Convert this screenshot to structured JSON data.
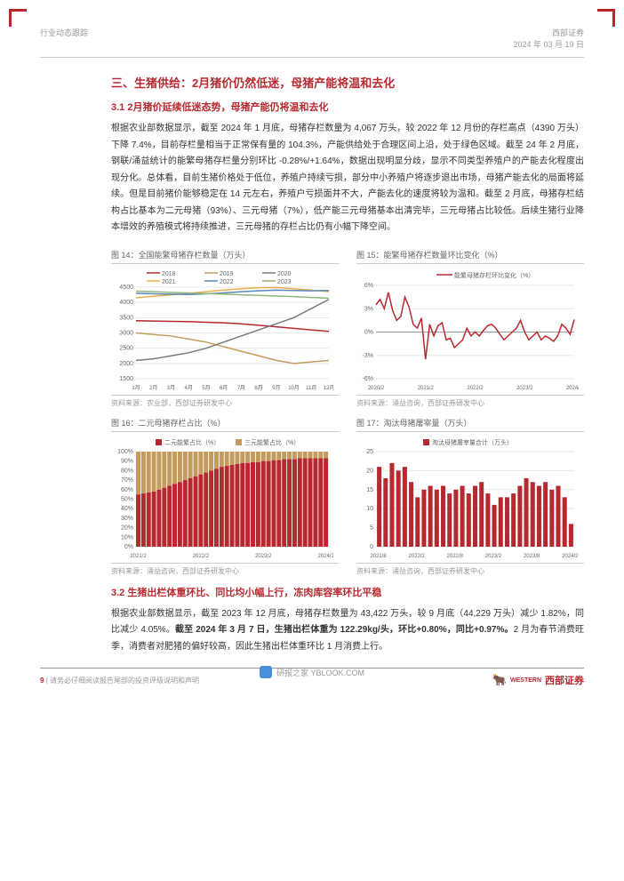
{
  "header": {
    "left": "行业动态跟踪",
    "right_top": "西部证券",
    "right_bottom": "2024 年 03 月 19 日"
  },
  "section": {
    "h1": "三、生猪供给：2月猪价仍然低迷，母猪产能将温和去化",
    "h2_1": "3.1 2月猪价延续低迷态势，母猪产能仍将温和去化",
    "para1": "根据农业部数据显示，截至 2024 年 1 月底，母猪存栏数量为 4,067 万头，较 2022 年 12 月份的存栏高点（4390 万头）下降 7.4%，目前存栏量相当于正常保有量的 104.3%，产能供给处于合理区间上沿，处于绿色区域。截至 24 年 2 月底，钢联/涌益统计的能繁母猪存栏量分别环比 -0.28%/+1.64%，数据出现明显分歧，显示不同类型养殖户的产能去化程度出现分化。总体看，目前生猪价格处于低位，养殖户持续亏损，部分中小养殖户将逐步退出市场，母猪产能去化的局面将延续。但是目前猪价能够稳定在 14 元左右，养殖户亏损面并不大，产能去化的速度将较为温和。截至 2 月底，母猪存栏结构占比基本为二元母猪（93%）、三元母猪（7%），低产能三元母猪基本出清完毕，三元母猪占比较低。后续生猪行业降本增效的养殖模式将持续推进，三元母猪的存栏占比仍有小幅下降空间。",
    "h2_2": "3.2 生猪出栏体重环比、同比均小幅上行，冻肉库容率环比平稳",
    "para2": "根据农业部数据显示，截至 2023 年 12 月底，母猪存栏数量为 43,422 万头，较 9 月底（44,229 万头）减少 1.82%，同比减少 4.05%。截至 2024 年 3 月 7 日，生猪出栏体重为 122.29kg/头，环比+0.80%，同比+0.97%。2 月为春节消费旺季，消费者对肥猪的偏好较高，因此生猪出栏体重环比 1 月消费上行。"
  },
  "chart14": {
    "title": "图 14：全国能繁母猪存栏数量（万头）",
    "source": "资料来源：农业部，西部证券研发中心",
    "type": "line",
    "legend": [
      {
        "label": "2018",
        "color": "#b8292f"
      },
      {
        "label": "2019",
        "color": "#c49b5f"
      },
      {
        "label": "2020",
        "color": "#7a7a7a"
      },
      {
        "label": "2021",
        "color": "#e8b04b"
      },
      {
        "label": "2022",
        "color": "#5a88b8"
      },
      {
        "label": "2023",
        "color": "#8fb87a"
      }
    ],
    "x_labels": [
      "1月",
      "2月",
      "3月",
      "4月",
      "5月",
      "6月",
      "7月",
      "8月",
      "9月",
      "10月",
      "11月",
      "12月"
    ],
    "ylim": [
      1500,
      4500
    ],
    "yticks": [
      1500,
      2000,
      2500,
      3000,
      3500,
      4000,
      4500
    ],
    "series": {
      "2018": [
        3400,
        3390,
        3380,
        3370,
        3350,
        3330,
        3300,
        3250,
        3200,
        3150,
        3100,
        3050
      ],
      "2019": [
        3000,
        2950,
        2900,
        2800,
        2700,
        2550,
        2400,
        2250,
        2100,
        2000,
        2050,
        2100
      ],
      "2020": [
        2100,
        2150,
        2250,
        2350,
        2500,
        2700,
        2900,
        3100,
        3300,
        3500,
        3800,
        4100
      ],
      "2021": [
        4150,
        4200,
        4250,
        4300,
        4350,
        4400,
        4450,
        4480,
        4490,
        4450,
        4400,
        4350
      ],
      "2022": [
        4300,
        4280,
        4270,
        4260,
        4280,
        4310,
        4350,
        4380,
        4400,
        4390,
        4380,
        4390
      ],
      "2023": [
        4370,
        4350,
        4330,
        4310,
        4290,
        4270,
        4250,
        4230,
        4210,
        4190,
        4160,
        4140
      ]
    },
    "background_color": "#ffffff",
    "grid_color": "#e8e8e8",
    "axis_fontsize": 7
  },
  "chart15": {
    "title": "图 15：能繁母猪存栏数量环比变化（%）",
    "source": "资料来源：涌益咨询，西部证券研发中心",
    "type": "line",
    "legend": [
      {
        "label": "能繁母猪存栏环比变化（%）",
        "color": "#b8292f"
      }
    ],
    "x_labels": [
      "2020/2",
      "2021/2",
      "2022/2",
      "2023/2",
      "2024/2"
    ],
    "ylim": [
      -6,
      6
    ],
    "yticks": [
      -6,
      -3,
      0,
      3,
      6
    ],
    "values": [
      3.5,
      4.2,
      3.0,
      5.1,
      2.8,
      1.5,
      2.0,
      4.5,
      3.2,
      1.0,
      0.5,
      1.8,
      -3.5,
      1.0,
      -0.5,
      0.8,
      1.2,
      -1.0,
      -0.8,
      -2.0,
      -1.5,
      -1.0,
      0.5,
      -0.5,
      0.0,
      -0.5,
      0.2,
      0.8,
      1.0,
      0.5,
      -0.3,
      -1.0,
      -0.5,
      0.0,
      0.5,
      1.5,
      0.0,
      -1.0,
      -0.5,
      0.0,
      -1.0,
      -0.5,
      -0.8,
      -1.2,
      -0.5,
      1.0,
      0.5,
      -0.3,
      1.6
    ],
    "background_color": "#ffffff",
    "grid_color": "#e8e8e8",
    "axis_fontsize": 7
  },
  "chart16": {
    "title": "图 16：二元母猪存栏占比（%）",
    "source": "资料来源：涌益咨询，西部证券研发中心",
    "type": "stacked_bar",
    "legend": [
      {
        "label": "二元能繁占比（%）",
        "color": "#b8292f"
      },
      {
        "label": "三元能繁占比（%）",
        "color": "#c49b5f"
      }
    ],
    "x_labels": [
      "2021/2",
      "2022/2",
      "2023/2",
      "2024/2"
    ],
    "ylim": [
      0,
      100
    ],
    "yticks": [
      0,
      10,
      20,
      30,
      40,
      50,
      60,
      70,
      80,
      90,
      100
    ],
    "n_bars": 37,
    "binary_pct": [
      55,
      56,
      57,
      58,
      60,
      62,
      64,
      66,
      68,
      70,
      72,
      74,
      76,
      78,
      80,
      82,
      84,
      85,
      86,
      87,
      88,
      88,
      89,
      89,
      90,
      90,
      91,
      91,
      92,
      92,
      92,
      93,
      93,
      93,
      93,
      93,
      93
    ],
    "background_color": "#ffffff",
    "axis_fontsize": 7
  },
  "chart17": {
    "title": "图 17：淘汰母猪屠宰量（万头）",
    "source": "资料来源：涌益咨询，西部证券研发中心",
    "type": "bar",
    "legend": [
      {
        "label": "淘汰母猪屠宰量合计（万头）",
        "color": "#b8292f"
      }
    ],
    "x_labels": [
      "2021/8",
      "2022/2",
      "2022/8",
      "2023/2",
      "2023/8",
      "2024/2"
    ],
    "ylim": [
      0,
      25
    ],
    "yticks": [
      0,
      5,
      10,
      15,
      20,
      25
    ],
    "values": [
      21,
      18,
      22,
      20,
      21,
      17,
      13,
      15,
      16,
      15,
      16,
      14,
      15,
      16,
      14,
      16,
      17,
      14,
      11,
      13,
      13,
      14,
      16,
      18,
      17,
      16,
      17,
      15,
      16,
      13,
      6
    ],
    "background_color": "#ffffff",
    "axis_fontsize": 7
  },
  "footer": {
    "page": "9",
    "disclaimer": "请务必仔细阅读报告尾部的投资评级说明和声明",
    "logo_en": "WESTERN",
    "logo_cn": "西部证券"
  },
  "watermark": "研报之家 YBLOOK.COM"
}
